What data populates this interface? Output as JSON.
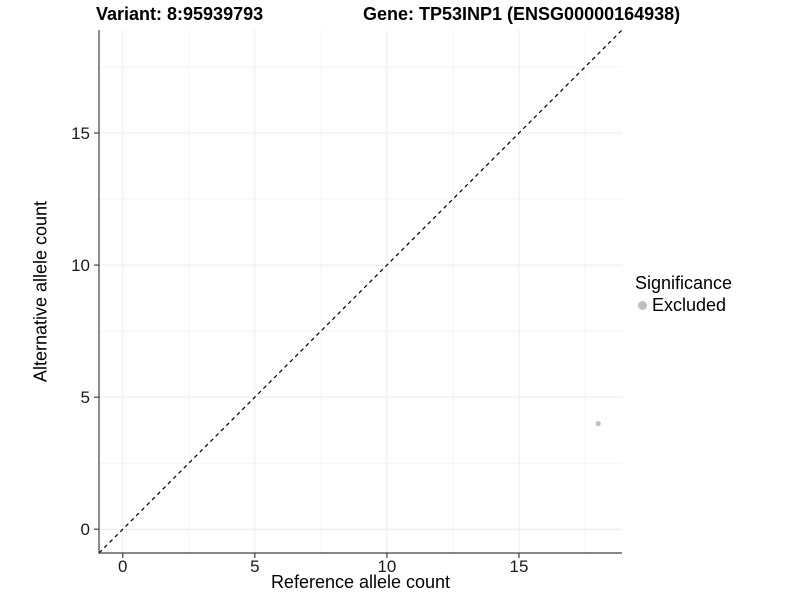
{
  "figure": {
    "kind": "scatter-plot-figure",
    "background": "#ffffff"
  },
  "chart_data": {
    "type": "scatter",
    "title_left": "Variant: 8:95939793",
    "title_right": "Gene: TP53INP1 (ENSG00000164938)",
    "xlabel": "Reference allele count",
    "ylabel": "Alternative allele count",
    "xlim": [
      -0.9,
      18.9
    ],
    "ylim": [
      -0.9,
      18.9
    ],
    "x_ticks": [
      0,
      5,
      10,
      15
    ],
    "y_ticks": [
      0,
      5,
      10,
      15
    ],
    "minor_gridlines": [
      2.5,
      7.5,
      12.5,
      17.5
    ],
    "grid": true,
    "legend_position": "right",
    "reference_line": {
      "type": "identity",
      "style": "dashed",
      "color": "#000000"
    },
    "series": [
      {
        "name": "Excluded",
        "color": "#bfbfbf",
        "points": [
          {
            "x": 18,
            "y": 4
          }
        ]
      }
    ],
    "legend": {
      "title": "Significance",
      "items": [
        {
          "label": "Excluded",
          "color": "#bfbfbf"
        }
      ]
    },
    "style": {
      "axis_line_color": "#404040",
      "tick_label_color": "#1a1a1a",
      "grid_major_color": "#ebebeb",
      "grid_minor_color": "#f3f3f3",
      "point_radius": 2.6,
      "tick_length": 5
    }
  }
}
